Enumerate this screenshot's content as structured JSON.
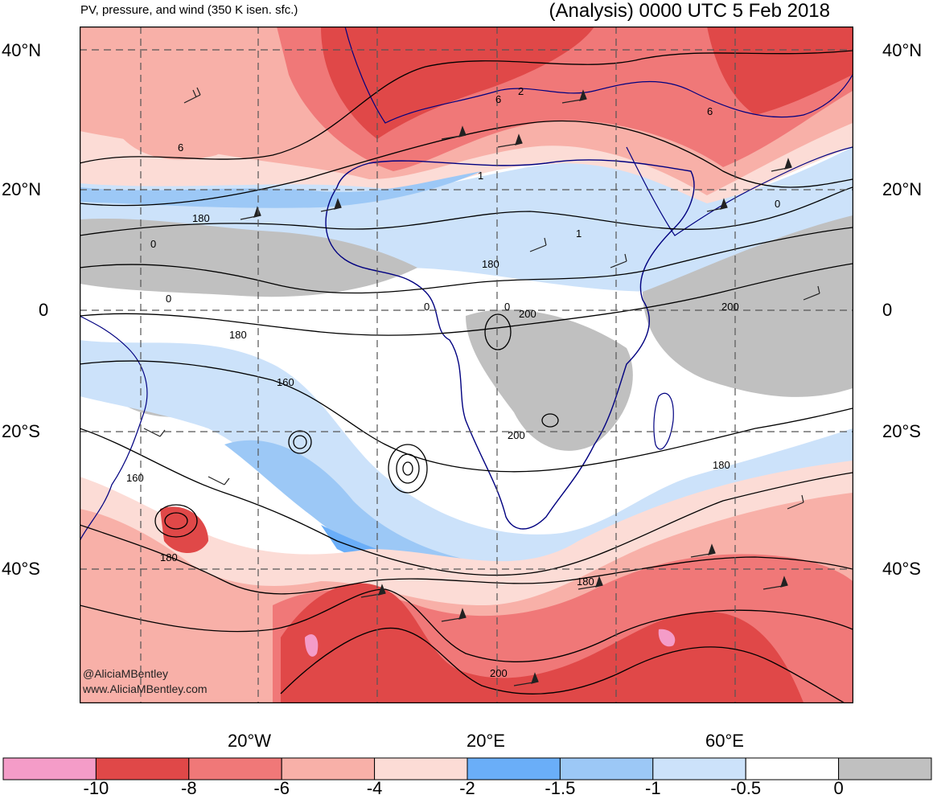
{
  "header": {
    "subtitle": "PV, pressure, and wind (350 K isen. sfc.)",
    "title": "(Analysis) 0000 UTC 5 Feb 2018"
  },
  "map": {
    "lat_labels": [
      "40°N",
      "20°N",
      "0",
      "20°S",
      "40°S"
    ],
    "lon_labels": [
      "20°W",
      "20°E",
      "60°E"
    ],
    "contour_labels": [
      "6",
      "2",
      "6",
      "6",
      "180",
      "0",
      "1",
      "1",
      "180",
      "0",
      "0",
      "0",
      "200",
      "0",
      "200",
      "180",
      "160",
      "200",
      "180",
      "160",
      "180",
      "180",
      "200"
    ],
    "credit_line1": "@AliciaMBentley",
    "credit_line2": "www.AliciaMBentley.com",
    "colors": {
      "dark_red": "#e04848",
      "red": "#f07878",
      "salmon": "#f8b0a8",
      "light_pink": "#fcdcd6",
      "blue": "#6aaef8",
      "mid_blue": "#9cc8f6",
      "light_blue": "#cce2fa",
      "gray": "#c0c0c0",
      "pink": "#f49cc8",
      "coast": "#000080"
    }
  },
  "colorbar": {
    "labels": [
      "-10",
      "-8",
      "-6",
      "-4",
      "-2",
      "-1.5",
      "-1",
      "-0.5",
      "0"
    ],
    "colors": [
      "#f49cc8",
      "#e04848",
      "#f07878",
      "#f8b0a8",
      "#fcdcd6",
      "#6aaef8",
      "#9cc8f6",
      "#cce2fa",
      "#ffffff",
      "#c0c0c0"
    ]
  }
}
